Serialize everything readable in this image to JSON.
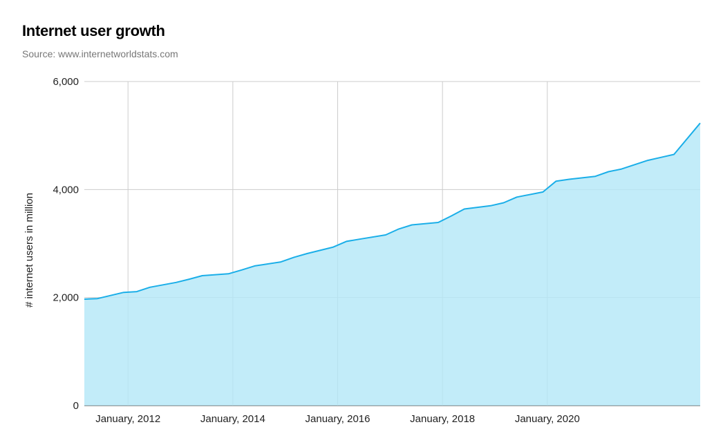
{
  "chart_title": "Internet user growth",
  "chart_subtitle": "Source: www.internetworldstats.com",
  "colors": {
    "line": "#1aaee8",
    "fill": "#b3e7f8",
    "grid": "#cccccc",
    "axis": "#333333"
  },
  "chart_data": {
    "type": "area",
    "title": "Internet user growth",
    "subtitle": "Source: www.internetworldstats.com",
    "xlabel": "",
    "ylabel": "# internet users in million",
    "ylim": [
      0,
      6000
    ],
    "yticks": [
      0,
      2000,
      4000,
      6000
    ],
    "ytick_labels": [
      "0",
      "2,000",
      "4,000",
      "6,000"
    ],
    "xlim": [
      "2011-03",
      "2022-12"
    ],
    "xticks": [
      "2012-01",
      "2014-01",
      "2016-01",
      "2018-01",
      "2020-01"
    ],
    "xtick_labels": [
      "January, 2012",
      "January, 2014",
      "January, 2016",
      "January, 2018",
      "January, 2020"
    ],
    "grid": true,
    "legend": "none",
    "series": [
      {
        "x": [
          "2011-03",
          "2011-06",
          "2011-12",
          "2012-03",
          "2012-06",
          "2012-12",
          "2013-03",
          "2013-06",
          "2013-12",
          "2014-03",
          "2014-06",
          "2014-12",
          "2015-03",
          "2015-06",
          "2015-12",
          "2016-03",
          "2016-06",
          "2016-12",
          "2017-03",
          "2017-06",
          "2017-12",
          "2018-03",
          "2018-06",
          "2018-12",
          "2019-03",
          "2019-06",
          "2019-12",
          "2020-03",
          "2020-06",
          "2020-12",
          "2021-03",
          "2021-06",
          "2021-12",
          "2022-03",
          "2022-06",
          "2022-12"
        ],
        "values": [
          1970,
          1980,
          2095,
          2110,
          2190,
          2280,
          2340,
          2405,
          2440,
          2510,
          2585,
          2660,
          2745,
          2815,
          2935,
          3040,
          3080,
          3160,
          3270,
          3345,
          3390,
          3510,
          3640,
          3700,
          3755,
          3860,
          3955,
          4155,
          4190,
          4245,
          4330,
          4380,
          4540,
          4595,
          4650,
          5230
        ]
      }
    ]
  }
}
